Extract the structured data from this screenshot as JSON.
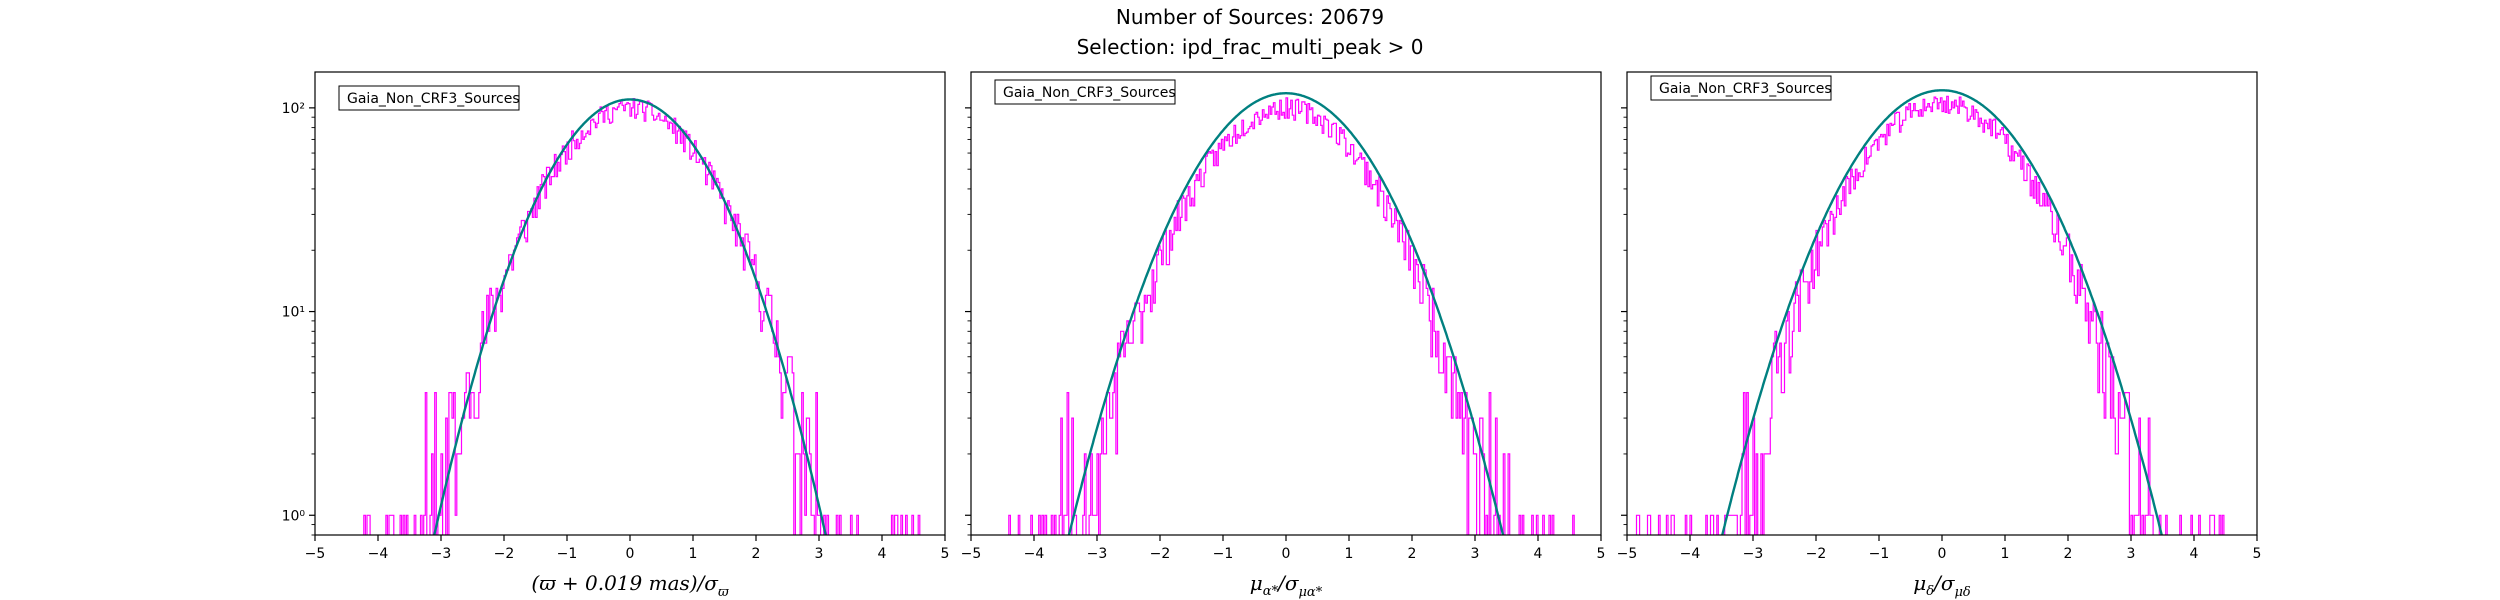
{
  "figure": {
    "title_line1": "Number of Sources: 20679",
    "title_line2": "Selection: ipd_frac_multi_peak > 0"
  },
  "colors": {
    "histogram": "#ff00ff",
    "fit": "#008080",
    "axes": "#000000"
  },
  "chart_data": [
    {
      "type": "line",
      "title": "",
      "legend": "Gaia_Non_CRF3_Sources",
      "legend_position": "top-left",
      "xlabel": "(ϖ + 0.019 mas)/σϖ",
      "xlabel_parts": [
        "(ϖ + 0.019 ",
        "mas",
        ")/σ",
        "ϖ"
      ],
      "ylabel": "",
      "xlim": [
        -5,
        5
      ],
      "ylim": [
        0.8,
        150
      ],
      "yscale": "log",
      "x_ticks": [
        "−5",
        "−4",
        "−3",
        "−2",
        "−1",
        "0",
        "1",
        "2",
        "3",
        "4",
        "5"
      ],
      "y_ticks": [
        "10⁰",
        "10¹",
        "10²"
      ],
      "series": [
        {
          "kind": "histogram",
          "peak": 100,
          "sigma": 1.02,
          "x_range": [
            -4.3,
            4.6
          ],
          "noise_seed": 11
        },
        {
          "kind": "gaussian_fit",
          "amplitude": 110,
          "mean": 0.0,
          "sigma": 0.99
        }
      ]
    },
    {
      "type": "line",
      "title": "",
      "legend": "Gaia_Non_CRF3_Sources",
      "legend_position": "top-left",
      "xlabel": "μα*/σμα*",
      "xlabel_parts": [
        "μ",
        "α*",
        "/σ",
        "μα*"
      ],
      "ylabel": "",
      "xlim": [
        -5,
        5
      ],
      "ylim": [
        0.8,
        150
      ],
      "yscale": "log",
      "x_ticks": [
        "−5",
        "−4",
        "−3",
        "−2",
        "−1",
        "0",
        "1",
        "2",
        "3",
        "4",
        "5"
      ],
      "y_ticks": [
        "10⁰",
        "10¹",
        "10²"
      ],
      "series": [
        {
          "kind": "histogram",
          "peak": 100,
          "sigma": 1.08,
          "x_range": [
            -4.7,
            4.6
          ],
          "noise_seed": 23
        },
        {
          "kind": "gaussian_fit",
          "amplitude": 118,
          "mean": 0.0,
          "sigma": 1.09
        }
      ]
    },
    {
      "type": "line",
      "title": "",
      "legend": "Gaia_Non_CRF3_Sources",
      "legend_position": "top-left",
      "xlabel": "μδ/σμδ",
      "xlabel_parts": [
        "μ",
        "δ",
        "/σ",
        "μδ"
      ],
      "ylabel": "",
      "xlim": [
        -5,
        5
      ],
      "ylim": [
        0.8,
        150
      ],
      "yscale": "log",
      "x_ticks": [
        "−5",
        "−4",
        "−3",
        "−2",
        "−1",
        "0",
        "1",
        "2",
        "3",
        "4",
        "5"
      ],
      "y_ticks": [
        "10⁰",
        "10¹",
        "10²"
      ],
      "series": [
        {
          "kind": "histogram",
          "peak": 105,
          "sigma": 1.08,
          "x_range": [
            -4.9,
            4.5
          ],
          "noise_seed": 37
        },
        {
          "kind": "gaussian_fit",
          "amplitude": 122,
          "mean": 0.0,
          "sigma": 1.1
        }
      ]
    }
  ]
}
